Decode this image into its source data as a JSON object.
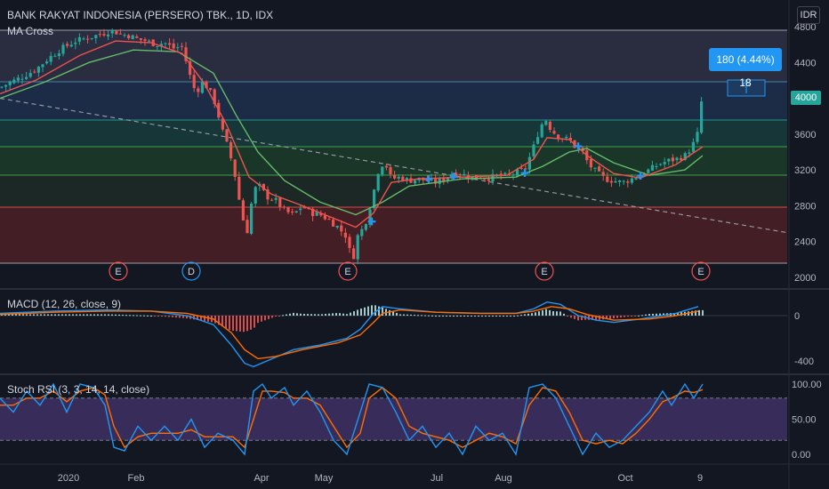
{
  "header": {
    "symbol_title": "BANK RAKYAT INDONESIA (PERSERO) TBK., 1D, IDX",
    "indicator": "MA Cross",
    "currency": "IDR"
  },
  "annotations": {
    "price_change_box": "180 (4.44%) 18",
    "last_price": "4000"
  },
  "panels": {
    "macd_title": "MACD (12, 26, close, 9)",
    "stoch_title": "Stoch RSI (3, 3, 14, 14, close)"
  },
  "colors": {
    "background": "#131722",
    "up": "#26a69a",
    "down": "#ef5350",
    "ma_fast": "#ef5350",
    "ma_slow": "#66bb6a",
    "macd": "#2196f3",
    "signal": "#ff6d00",
    "stoch_k": "#2196f3",
    "stoch_d": "#ff6d00",
    "stoch_band": "#7e57c2",
    "accent": "#2196f3"
  },
  "chart_data": [
    {
      "type": "candlestick",
      "title": "BANK RAKYAT INDONESIA (PERSERO) TBK., 1D, IDX",
      "y_ticks": [
        "2000",
        "2400",
        "2800",
        "3200",
        "3600",
        "4000",
        "4400",
        "4800"
      ],
      "ylim": [
        1950,
        4850
      ],
      "x_ticks": [
        "2020",
        "Feb",
        "Apr",
        "May",
        "Jul",
        "Aug",
        "Oct",
        "9"
      ],
      "events": [
        "E",
        "D",
        "E",
        "E",
        "E"
      ],
      "horizontal_levels": [
        4180,
        3750,
        3450,
        3150,
        2780,
        2150
      ],
      "price_path": [
        [
          0,
          4120
        ],
        [
          12,
          4180
        ],
        [
          25,
          4240
        ],
        [
          40,
          4320
        ],
        [
          55,
          4450
        ],
        [
          70,
          4560
        ],
        [
          85,
          4640
        ],
        [
          100,
          4680
        ],
        [
          115,
          4720
        ],
        [
          125,
          4760
        ],
        [
          135,
          4720
        ],
        [
          145,
          4700
        ],
        [
          155,
          4660
        ],
        [
          165,
          4640
        ],
        [
          175,
          4600
        ],
        [
          185,
          4620
        ],
        [
          195,
          4560
        ],
        [
          205,
          4580
        ],
        [
          212,
          4300
        ],
        [
          220,
          4060
        ],
        [
          228,
          4180
        ],
        [
          235,
          4100
        ],
        [
          242,
          3940
        ],
        [
          250,
          3640
        ],
        [
          258,
          3400
        ],
        [
          265,
          3100
        ],
        [
          272,
          2680
        ],
        [
          278,
          2520
        ],
        [
          285,
          2980
        ],
        [
          292,
          3020
        ],
        [
          300,
          2900
        ],
        [
          310,
          2860
        ],
        [
          320,
          2740
        ],
        [
          330,
          2700
        ],
        [
          340,
          2800
        ],
        [
          350,
          2720
        ],
        [
          360,
          2700
        ],
        [
          370,
          2640
        ],
        [
          380,
          2560
        ],
        [
          390,
          2450
        ],
        [
          396,
          2160
        ],
        [
          402,
          2460
        ],
        [
          410,
          2580
        ],
        [
          418,
          2860
        ],
        [
          425,
          3180
        ],
        [
          432,
          3300
        ],
        [
          440,
          3100
        ],
        [
          450,
          3120
        ],
        [
          460,
          3080
        ],
        [
          470,
          3100
        ],
        [
          480,
          3080
        ],
        [
          490,
          3060
        ],
        [
          500,
          3100
        ],
        [
          510,
          3180
        ],
        [
          520,
          3150
        ],
        [
          530,
          3120
        ],
        [
          540,
          3120
        ],
        [
          550,
          3110
        ],
        [
          560,
          3140
        ],
        [
          570,
          3130
        ],
        [
          580,
          3170
        ],
        [
          590,
          3200
        ],
        [
          600,
          3460
        ],
        [
          608,
          3700
        ],
        [
          614,
          3760
        ],
        [
          620,
          3640
        ],
        [
          630,
          3560
        ],
        [
          640,
          3540
        ],
        [
          648,
          3440
        ],
        [
          655,
          3400
        ],
        [
          662,
          3260
        ],
        [
          670,
          3180
        ],
        [
          680,
          3100
        ],
        [
          690,
          3080
        ],
        [
          700,
          3060
        ],
        [
          710,
          3100
        ],
        [
          720,
          3150
        ],
        [
          730,
          3200
        ],
        [
          740,
          3260
        ],
        [
          750,
          3300
        ],
        [
          760,
          3320
        ],
        [
          770,
          3360
        ],
        [
          778,
          3460
        ],
        [
          784,
          3600
        ],
        [
          788,
          3960
        ]
      ],
      "ma_fast": [
        [
          0,
          4050
        ],
        [
          40,
          4200
        ],
        [
          90,
          4480
        ],
        [
          130,
          4640
        ],
        [
          170,
          4620
        ],
        [
          205,
          4500
        ],
        [
          230,
          4160
        ],
        [
          255,
          3700
        ],
        [
          280,
          3120
        ],
        [
          305,
          2930
        ],
        [
          340,
          2800
        ],
        [
          380,
          2640
        ],
        [
          400,
          2560
        ],
        [
          420,
          2720
        ],
        [
          440,
          3060
        ],
        [
          470,
          3100
        ],
        [
          520,
          3120
        ],
        [
          570,
          3140
        ],
        [
          600,
          3320
        ],
        [
          615,
          3560
        ],
        [
          640,
          3540
        ],
        [
          660,
          3360
        ],
        [
          690,
          3160
        ],
        [
          720,
          3110
        ],
        [
          760,
          3260
        ],
        [
          790,
          3460
        ]
      ],
      "ma_slow": [
        [
          0,
          4000
        ],
        [
          50,
          4180
        ],
        [
          100,
          4400
        ],
        [
          150,
          4540
        ],
        [
          200,
          4520
        ],
        [
          240,
          4280
        ],
        [
          265,
          3820
        ],
        [
          290,
          3400
        ],
        [
          320,
          3080
        ],
        [
          360,
          2840
        ],
        [
          400,
          2700
        ],
        [
          430,
          2840
        ],
        [
          460,
          3020
        ],
        [
          520,
          3100
        ],
        [
          580,
          3120
        ],
        [
          610,
          3240
        ],
        [
          640,
          3400
        ],
        [
          660,
          3440
        ],
        [
          690,
          3280
        ],
        [
          730,
          3140
        ],
        [
          770,
          3200
        ],
        [
          790,
          3360
        ]
      ],
      "trendline": [
        [
          0,
          4000
        ],
        [
          885,
          2500
        ]
      ]
    },
    {
      "type": "macd",
      "title": "MACD (12, 26, close, 9)",
      "y_ticks": [
        "0",
        "-400"
      ],
      "ylim": [
        -520,
        120
      ],
      "macd": [
        [
          0,
          20
        ],
        [
          60,
          40
        ],
        [
          120,
          50
        ],
        [
          170,
          40
        ],
        [
          210,
          0
        ],
        [
          240,
          -80
        ],
        [
          260,
          -260
        ],
        [
          275,
          -420
        ],
        [
          285,
          -450
        ],
        [
          300,
          -400
        ],
        [
          330,
          -300
        ],
        [
          360,
          -260
        ],
        [
          390,
          -200
        ],
        [
          405,
          -120
        ],
        [
          420,
          20
        ],
        [
          430,
          80
        ],
        [
          450,
          60
        ],
        [
          490,
          30
        ],
        [
          540,
          20
        ],
        [
          580,
          20
        ],
        [
          600,
          60
        ],
        [
          615,
          120
        ],
        [
          630,
          100
        ],
        [
          650,
          0
        ],
        [
          670,
          -40
        ],
        [
          690,
          -60
        ],
        [
          720,
          -30
        ],
        [
          760,
          20
        ],
        [
          785,
          80
        ]
      ],
      "signal": [
        [
          0,
          10
        ],
        [
          60,
          30
        ],
        [
          120,
          40
        ],
        [
          170,
          40
        ],
        [
          210,
          20
        ],
        [
          240,
          -30
        ],
        [
          260,
          -150
        ],
        [
          275,
          -300
        ],
        [
          290,
          -380
        ],
        [
          310,
          -360
        ],
        [
          340,
          -300
        ],
        [
          380,
          -240
        ],
        [
          405,
          -170
        ],
        [
          420,
          -60
        ],
        [
          430,
          20
        ],
        [
          450,
          50
        ],
        [
          490,
          30
        ],
        [
          540,
          20
        ],
        [
          580,
          20
        ],
        [
          600,
          40
        ],
        [
          620,
          80
        ],
        [
          640,
          60
        ],
        [
          660,
          10
        ],
        [
          690,
          -40
        ],
        [
          730,
          -30
        ],
        [
          760,
          0
        ],
        [
          785,
          40
        ]
      ],
      "histogram_note": "colored histogram bars around zero"
    },
    {
      "type": "stoch_rsi",
      "title": "Stoch RSI (3, 3, 14, 14, close)",
      "y_ticks": [
        "100.00",
        "50.00",
        "0.00"
      ],
      "ylim": [
        -5,
        105
      ],
      "bands": [
        20,
        80
      ],
      "k": [
        [
          0,
          80
        ],
        [
          15,
          60
        ],
        [
          30,
          90
        ],
        [
          45,
          70
        ],
        [
          60,
          100
        ],
        [
          75,
          60
        ],
        [
          90,
          100
        ],
        [
          105,
          95
        ],
        [
          118,
          70
        ],
        [
          128,
          10
        ],
        [
          140,
          5
        ],
        [
          155,
          40
        ],
        [
          170,
          20
        ],
        [
          185,
          40
        ],
        [
          200,
          20
        ],
        [
          215,
          50
        ],
        [
          230,
          10
        ],
        [
          245,
          30
        ],
        [
          262,
          20
        ],
        [
          275,
          0
        ],
        [
          285,
          90
        ],
        [
          295,
          100
        ],
        [
          305,
          80
        ],
        [
          320,
          95
        ],
        [
          330,
          70
        ],
        [
          345,
          90
        ],
        [
          360,
          60
        ],
        [
          375,
          20
        ],
        [
          390,
          0
        ],
        [
          405,
          60
        ],
        [
          415,
          100
        ],
        [
          430,
          95
        ],
        [
          445,
          60
        ],
        [
          460,
          20
        ],
        [
          475,
          40
        ],
        [
          490,
          10
        ],
        [
          505,
          30
        ],
        [
          520,
          0
        ],
        [
          535,
          40
        ],
        [
          550,
          20
        ],
        [
          565,
          30
        ],
        [
          580,
          0
        ],
        [
          595,
          95
        ],
        [
          610,
          100
        ],
        [
          625,
          80
        ],
        [
          640,
          40
        ],
        [
          655,
          0
        ],
        [
          670,
          30
        ],
        [
          685,
          10
        ],
        [
          700,
          20
        ],
        [
          715,
          40
        ],
        [
          730,
          60
        ],
        [
          745,
          90
        ],
        [
          755,
          70
        ],
        [
          770,
          100
        ],
        [
          780,
          80
        ],
        [
          790,
          100
        ]
      ],
      "d": [
        [
          0,
          70
        ],
        [
          15,
          70
        ],
        [
          30,
          80
        ],
        [
          45,
          80
        ],
        [
          60,
          90
        ],
        [
          75,
          75
        ],
        [
          90,
          90
        ],
        [
          105,
          95
        ],
        [
          118,
          85
        ],
        [
          128,
          40
        ],
        [
          140,
          10
        ],
        [
          155,
          25
        ],
        [
          170,
          30
        ],
        [
          185,
          30
        ],
        [
          200,
          30
        ],
        [
          215,
          35
        ],
        [
          230,
          25
        ],
        [
          245,
          25
        ],
        [
          262,
          25
        ],
        [
          275,
          10
        ],
        [
          285,
          50
        ],
        [
          295,
          90
        ],
        [
          305,
          90
        ],
        [
          320,
          88
        ],
        [
          330,
          80
        ],
        [
          345,
          80
        ],
        [
          360,
          70
        ],
        [
          375,
          40
        ],
        [
          390,
          10
        ],
        [
          405,
          30
        ],
        [
          415,
          80
        ],
        [
          430,
          95
        ],
        [
          445,
          80
        ],
        [
          460,
          40
        ],
        [
          475,
          30
        ],
        [
          490,
          25
        ],
        [
          505,
          20
        ],
        [
          520,
          10
        ],
        [
          535,
          20
        ],
        [
          550,
          30
        ],
        [
          565,
          25
        ],
        [
          580,
          15
        ],
        [
          595,
          70
        ],
        [
          610,
          95
        ],
        [
          625,
          90
        ],
        [
          640,
          60
        ],
        [
          655,
          20
        ],
        [
          670,
          15
        ],
        [
          685,
          20
        ],
        [
          700,
          15
        ],
        [
          715,
          30
        ],
        [
          730,
          50
        ],
        [
          745,
          75
        ],
        [
          755,
          80
        ],
        [
          770,
          90
        ],
        [
          780,
          88
        ],
        [
          790,
          92
        ]
      ]
    }
  ]
}
